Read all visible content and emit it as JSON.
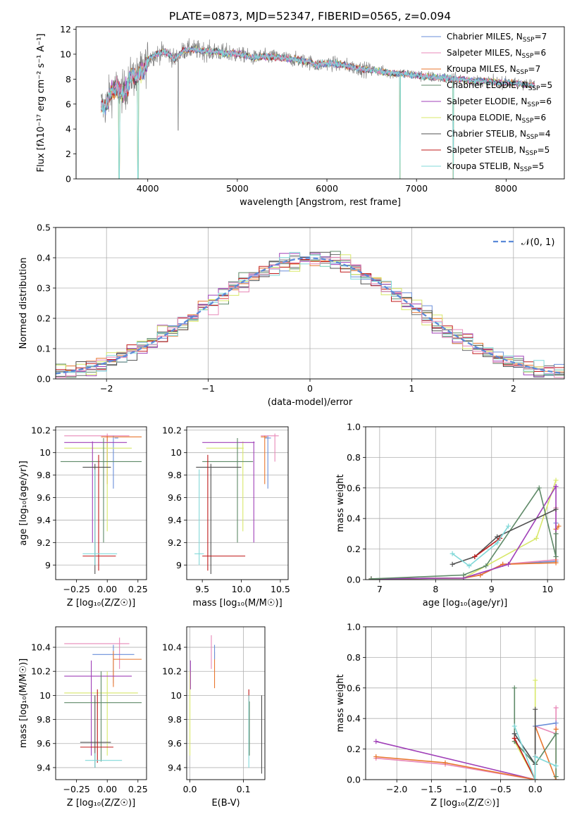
{
  "title": "PLATE=0873, MJD=52347, FIBERID=0565, z=0.094",
  "colors": {
    "cm": "#6a8ed9",
    "sm": "#e8762e",
    "km": "#6f7070",
    "ce": "#5f8a68",
    "se": "#a040b8",
    "ke": "#d8e86a",
    "cs": "#505050",
    "ss": "#c01a1a",
    "ks": "#80d8d8",
    "pink": "#e888b8",
    "spec": "#808080"
  },
  "chart_data": [
    {
      "id": "spectrum",
      "type": "line",
      "xlabel": "wavelength [Angstrom, rest frame]",
      "ylabel": "Flux [fλ10⁻¹⁷ erg cm⁻² s⁻¹ A⁻¹]",
      "xlim": [
        3200,
        8650
      ],
      "ylim": [
        0,
        12.2
      ],
      "xticks": [
        4000,
        5000,
        6000,
        7000,
        8000
      ],
      "yticks": [
        0,
        2,
        4,
        6,
        8,
        10,
        12
      ],
      "legend_position": "upper-right",
      "legend": [
        {
          "key": "cm",
          "label": "Chabrier MILES, N",
          "sub": "SSP",
          "suffix": "=7"
        },
        {
          "key": "pink",
          "label": "Salpeter MILES, N",
          "sub": "SSP",
          "suffix": "=6"
        },
        {
          "key": "sm",
          "label": "Kroupa MILES, N",
          "sub": "SSP",
          "suffix": "=7"
        },
        {
          "key": "ce",
          "label": "Chabrier ELODIE, N",
          "sub": "SSP",
          "suffix": "=5"
        },
        {
          "key": "se",
          "label": "Salpeter ELODIE, N",
          "sub": "SSP",
          "suffix": "=6"
        },
        {
          "key": "ke",
          "label": "Kroupa ELODIE, N",
          "sub": "SSP",
          "suffix": "=6"
        },
        {
          "key": "cs",
          "label": "Chabrier STELIB, N",
          "sub": "SSP",
          "suffix": "=4"
        },
        {
          "key": "ss",
          "label": "Salpeter STELIB, N",
          "sub": "SSP",
          "suffix": "=5"
        },
        {
          "key": "ks",
          "label": "Kroupa STELIB, N",
          "sub": "SSP",
          "suffix": "=5"
        }
      ],
      "continuum": [
        [
          3460,
          6.1
        ],
        [
          3520,
          5.7
        ],
        [
          3580,
          6.8
        ],
        [
          3650,
          7.3
        ],
        [
          3700,
          6.9
        ],
        [
          3760,
          7.2
        ],
        [
          3820,
          8.3
        ],
        [
          3870,
          8.1
        ],
        [
          3920,
          8.6
        ],
        [
          3960,
          8.8
        ],
        [
          4000,
          9.6
        ],
        [
          4100,
          10.0
        ],
        [
          4200,
          10.2
        ],
        [
          4300,
          9.6
        ],
        [
          4400,
          10.3
        ],
        [
          4500,
          10.4
        ],
        [
          4600,
          10.3
        ],
        [
          4700,
          10.2
        ],
        [
          4800,
          10.2
        ],
        [
          4860,
          10.0
        ],
        [
          4900,
          10.1
        ],
        [
          5000,
          10.0
        ],
        [
          5100,
          9.9
        ],
        [
          5175,
          9.7
        ],
        [
          5250,
          9.8
        ],
        [
          5400,
          9.8
        ],
        [
          5600,
          9.6
        ],
        [
          5800,
          9.4
        ],
        [
          5890,
          9.1
        ],
        [
          6000,
          9.3
        ],
        [
          6200,
          9.1
        ],
        [
          6400,
          8.8
        ],
        [
          6560,
          8.7
        ],
        [
          6700,
          8.5
        ],
        [
          6900,
          8.4
        ],
        [
          7100,
          8.2
        ],
        [
          7300,
          8.1
        ],
        [
          7420,
          8.0
        ],
        [
          7600,
          7.9
        ],
        [
          7800,
          7.8
        ],
        [
          8000,
          7.7
        ],
        [
          8200,
          7.6
        ],
        [
          8320,
          7.5
        ]
      ],
      "spec_xrange": [
        3480,
        8320
      ],
      "spec_dips": [
        [
          4340,
          3.9
        ],
        [
          6815,
          0
        ],
        [
          7410,
          0
        ]
      ],
      "model_dips": [
        [
          3680,
          0
        ],
        [
          3890,
          0
        ],
        [
          6815,
          0
        ],
        [
          7410,
          0
        ]
      ]
    },
    {
      "id": "residuals",
      "type": "histogram",
      "xlabel": "(data-model)/error",
      "ylabel": "Normed distribution",
      "xlim": [
        -2.5,
        2.5
      ],
      "ylim": [
        0,
        0.5
      ],
      "xticks": [
        -2,
        -1,
        0,
        1,
        2
      ],
      "xtick_labels": [
        "−2",
        "−1",
        "0",
        "1",
        "2"
      ],
      "yticks": [
        0,
        0.1,
        0.2,
        0.3,
        0.4,
        0.5
      ],
      "ytick_labels": [
        "0.0",
        "0.1",
        "0.2",
        "0.3",
        "0.4",
        "0.5"
      ],
      "legend": "𝒩(0, 1)",
      "legend_position": "upper-right",
      "bin_width": 0.1,
      "reference_curve": "normal(0,1)"
    },
    {
      "id": "age_z",
      "type": "scatter-errorbar",
      "xlabel": "Z [log₁₀(Z/Z☉)]",
      "ylabel": "age  [log₁₀(age/yr)]",
      "xlim": [
        -0.42,
        0.32
      ],
      "ylim": [
        8.87,
        10.23
      ],
      "xticks": [
        -0.25,
        0,
        0.25
      ],
      "xtick_labels": [
        "−0.25",
        "0.00",
        "0.25"
      ],
      "yticks": [
        9.0,
        9.2,
        9.4,
        9.6,
        9.8,
        10.0,
        10.2
      ],
      "points": [
        {
          "k": "pink",
          "x": 0.0,
          "xl": -0.35,
          "xh": 0.18,
          "y": 10.15,
          "yl": 9.92,
          "yh": 10.17
        },
        {
          "k": "cm",
          "x": 0.05,
          "xl": 0.06,
          "xh": 0.09,
          "y": 10.13,
          "yl": 9.68,
          "yh": 10.15
        },
        {
          "k": "sm",
          "x": 0.0,
          "xl": -0.05,
          "xh": 0.28,
          "y": 10.14,
          "yl": 9.72,
          "yh": 10.15
        },
        {
          "k": "ke",
          "x": 0.0,
          "xl": -0.35,
          "xh": 0.2,
          "y": 10.04,
          "yl": 9.3,
          "yh": 10.1
        },
        {
          "k": "se",
          "x": -0.12,
          "xl": -0.35,
          "xh": 0.16,
          "y": 10.09,
          "yl": 9.2,
          "yh": 10.1
        },
        {
          "k": "ce",
          "x": -0.03,
          "xl": -0.38,
          "xh": 0.28,
          "y": 9.92,
          "yl": 9.2,
          "yh": 10.13
        },
        {
          "k": "cs",
          "x": -0.1,
          "xl": -0.2,
          "xh": 0.03,
          "y": 9.87,
          "yl": 8.92,
          "yh": 9.9
        },
        {
          "k": "ss",
          "x": -0.07,
          "xl": -0.2,
          "xh": 0.07,
          "y": 9.08,
          "yl": 8.95,
          "yh": 9.98
        },
        {
          "k": "ks",
          "x": -0.1,
          "xl": -0.2,
          "xh": 0.08,
          "y": 9.1,
          "yl": 9.0,
          "yh": 9.85
        }
      ]
    },
    {
      "id": "age_mass",
      "type": "scatter-errorbar",
      "xlabel": "mass [log₁₀(M/M☉)]",
      "ylabel": "",
      "xlim": [
        9.3,
        10.6
      ],
      "ylim": [
        8.87,
        10.23
      ],
      "xticks": [
        9.5,
        10.0,
        10.5
      ],
      "xtick_labels": [
        "9.5",
        "10.0",
        "10.5"
      ],
      "yticks": [
        9.0,
        9.2,
        9.4,
        9.6,
        9.8,
        10.0,
        10.2
      ],
      "points": [
        {
          "k": "pink",
          "x": 10.43,
          "xl": 10.25,
          "xh": 10.48,
          "y": 10.15,
          "yl": 9.92,
          "yh": 10.17
        },
        {
          "k": "cm",
          "x": 10.34,
          "xl": 10.3,
          "xh": 10.38,
          "y": 10.13,
          "yl": 9.68,
          "yh": 10.15
        },
        {
          "k": "sm",
          "x": 10.3,
          "xl": 10.25,
          "xh": 10.33,
          "y": 10.14,
          "yl": 9.72,
          "yh": 10.15
        },
        {
          "k": "ke",
          "x": 10.02,
          "xl": 9.55,
          "xh": 10.03,
          "y": 10.04,
          "yl": 9.3,
          "yh": 10.1
        },
        {
          "k": "se",
          "x": 10.16,
          "xl": 9.5,
          "xh": 10.17,
          "y": 10.09,
          "yl": 9.2,
          "yh": 10.1
        },
        {
          "k": "ce",
          "x": 9.95,
          "xl": 9.5,
          "xh": 10.15,
          "y": 9.92,
          "yl": 9.2,
          "yh": 10.13
        },
        {
          "k": "cs",
          "x": 9.61,
          "xl": 9.42,
          "xh": 10.0,
          "y": 9.87,
          "yl": 8.92,
          "yh": 9.9
        },
        {
          "k": "ss",
          "x": 9.57,
          "xl": 9.5,
          "xh": 10.05,
          "y": 9.08,
          "yl": 8.95,
          "yh": 9.98
        },
        {
          "k": "ks",
          "x": 9.46,
          "xl": 9.4,
          "xh": 9.52,
          "y": 9.1,
          "yl": 9.0,
          "yh": 9.85
        }
      ]
    },
    {
      "id": "weight_age",
      "type": "line",
      "xlabel": "age  [log₁₀(age/yr)]",
      "ylabel": "mass weight",
      "xlim": [
        6.75,
        10.3
      ],
      "ylim": [
        0,
        1.0
      ],
      "xticks": [
        7,
        8,
        9,
        10
      ],
      "xtick_labels": [
        "7",
        "8",
        "9",
        "10"
      ],
      "yticks": [
        0,
        0.2,
        0.4,
        0.6,
        0.8,
        1.0
      ],
      "ytick_labels": [
        "0.0",
        "0.2",
        "0.4",
        "0.6",
        "0.8",
        "1.0"
      ],
      "series": [
        {
          "k": "cm",
          "x": [
            6.85,
            8.5,
            8.8,
            9.2,
            10.15,
            10.15
          ],
          "y": [
            0.005,
            0.01,
            0.03,
            0.1,
            0.12,
            0.37
          ]
        },
        {
          "k": "pink",
          "x": [
            6.85,
            8.5,
            8.8,
            9.2,
            10.15,
            10.15
          ],
          "y": [
            0.005,
            0.01,
            0.03,
            0.1,
            0.13,
            0.47
          ]
        },
        {
          "k": "sm",
          "x": [
            6.85,
            8.5,
            8.8,
            9.2,
            10.15,
            10.15,
            10.2
          ],
          "y": [
            0.005,
            0.01,
            0.03,
            0.1,
            0.11,
            0.33,
            0.35
          ]
        },
        {
          "k": "ke",
          "x": [
            6.85,
            8.5,
            9.8,
            10.15
          ],
          "y": [
            0.005,
            0.01,
            0.27,
            0.65
          ]
        },
        {
          "k": "se",
          "x": [
            6.85,
            8.5,
            9.3,
            10.15,
            10.15
          ],
          "y": [
            0.005,
            0.01,
            0.1,
            0.61,
            0.15
          ]
        },
        {
          "k": "ce",
          "x": [
            6.85,
            8.5,
            8.9,
            9.85,
            10.15,
            10.15
          ],
          "y": [
            0.005,
            0.03,
            0.09,
            0.6,
            0.15,
            0.3
          ]
        },
        {
          "k": "cs",
          "x": [
            8.3,
            8.7,
            9.1,
            10.15
          ],
          "y": [
            0.1,
            0.15,
            0.28,
            0.46
          ]
        },
        {
          "k": "ss",
          "x": [
            8.7,
            9.15
          ],
          "y": [
            0.15,
            0.27
          ]
        },
        {
          "k": "ks",
          "x": [
            8.3,
            8.6,
            9.1,
            9.3
          ],
          "y": [
            0.17,
            0.09,
            0.24,
            0.35
          ]
        }
      ]
    },
    {
      "id": "mass_z",
      "type": "scatter-errorbar",
      "xlabel": "Z [log₁₀(Z/Z☉)]",
      "ylabel": "mass [log₁₀(M/M☉)]",
      "xlim": [
        -0.42,
        0.32
      ],
      "ylim": [
        9.3,
        10.57
      ],
      "xticks": [
        -0.25,
        0,
        0.25
      ],
      "xtick_labels": [
        "−0.25",
        "0.00",
        "0.25"
      ],
      "yticks": [
        9.4,
        9.6,
        9.8,
        10.0,
        10.2,
        10.4
      ],
      "points": [
        {
          "k": "pink",
          "x": 0.1,
          "xl": -0.35,
          "xh": 0.18,
          "y": 10.43,
          "yl": 10.22,
          "yh": 10.48
        },
        {
          "k": "cm",
          "x": 0.05,
          "xl": -0.12,
          "xh": 0.22,
          "y": 10.34,
          "yl": 10.1,
          "yh": 10.42
        },
        {
          "k": "sm",
          "x": 0.05,
          "xl": 0.05,
          "xh": 0.28,
          "y": 10.3,
          "yl": 10.07,
          "yh": 10.37
        },
        {
          "k": "ke",
          "x": 0.0,
          "xl": -0.35,
          "xh": 0.25,
          "y": 10.02,
          "yl": 9.5,
          "yh": 10.2
        },
        {
          "k": "se",
          "x": -0.13,
          "xl": -0.35,
          "xh": 0.2,
          "y": 10.16,
          "yl": 9.5,
          "yh": 10.29
        },
        {
          "k": "ce",
          "x": -0.05,
          "xl": -0.35,
          "xh": 0.28,
          "y": 9.94,
          "yl": 9.45,
          "yh": 10.2
        },
        {
          "k": "cs",
          "x": -0.1,
          "xl": -0.22,
          "xh": 0.03,
          "y": 9.61,
          "yl": 9.4,
          "yh": 10.0
        },
        {
          "k": "ss",
          "x": -0.08,
          "xl": -0.22,
          "xh": 0.05,
          "y": 9.57,
          "yl": 9.44,
          "yh": 10.05
        },
        {
          "k": "ks",
          "x": -0.1,
          "xl": -0.18,
          "xh": 0.12,
          "y": 9.46,
          "yl": 9.4,
          "yh": 9.52
        }
      ]
    },
    {
      "id": "mass_ebv",
      "type": "errorbar",
      "xlabel": "E(B-V)",
      "ylabel": "",
      "xlim": [
        -0.006,
        0.14
      ],
      "ylim": [
        9.3,
        10.57
      ],
      "xticks": [
        0.0,
        0.1
      ],
      "xtick_labels": [
        "0.0",
        "0.1"
      ],
      "yticks": [
        9.4,
        9.6,
        9.8,
        10.0,
        10.2,
        10.4
      ],
      "points": [
        {
          "k": "ke",
          "x": 0.0,
          "yl": 9.5,
          "yh": 10.2
        },
        {
          "k": "se",
          "x": 0.001,
          "yl": 10.05,
          "yh": 10.29
        },
        {
          "k": "pink",
          "x": 0.04,
          "yl": 10.22,
          "yh": 10.5
        },
        {
          "k": "sm",
          "x": 0.046,
          "yl": 10.06,
          "yh": 10.36
        },
        {
          "k": "cm",
          "x": 0.046,
          "yl": 10.3,
          "yh": 10.42
        },
        {
          "k": "ss",
          "x": 0.11,
          "yl": 9.95,
          "yh": 10.05
        },
        {
          "k": "ks",
          "x": 0.11,
          "yl": 9.4,
          "yh": 10.0
        },
        {
          "k": "ce",
          "x": 0.111,
          "yl": 9.5,
          "yh": 9.95
        },
        {
          "k": "cs",
          "x": 0.134,
          "yl": 9.35,
          "yh": 10.0
        }
      ]
    },
    {
      "id": "weight_z",
      "type": "line",
      "xlabel": "Z [log₁₀(Z/Z☉)]",
      "ylabel": "mass weight",
      "xlim": [
        -2.45,
        0.42
      ],
      "ylim": [
        0,
        1.0
      ],
      "xticks": [
        -2.0,
        -1.5,
        -1.0,
        -0.5,
        0.0
      ],
      "xtick_labels": [
        "−2.0",
        "−1.5",
        "−1.0",
        "−0.5",
        "0.0"
      ],
      "yticks": [
        0,
        0.2,
        0.4,
        0.6,
        0.8,
        1.0
      ],
      "ytick_labels": [
        "0.0",
        "0.2",
        "0.4",
        "0.6",
        "0.8",
        "1.0"
      ],
      "series": [
        {
          "k": "se",
          "x": [
            -2.3,
            0.0,
            0.0
          ],
          "y": [
            0.25,
            0.0,
            0.1
          ]
        },
        {
          "k": "pink",
          "x": [
            -2.3,
            -1.3,
            0.0,
            0.0,
            0.3,
            0.3
          ],
          "y": [
            0.14,
            0.1,
            0.0,
            0.35,
            0.3,
            0.47
          ]
        },
        {
          "k": "sm",
          "x": [
            -2.3,
            -1.3,
            0.0,
            0.0,
            0.3,
            0.3
          ],
          "y": [
            0.15,
            0.11,
            0.0,
            0.35,
            0.0,
            0.33
          ]
        },
        {
          "k": "cm",
          "x": [
            -0.3,
            0.0,
            0.0,
            0.3
          ],
          "y": [
            0.3,
            0.1,
            0.35,
            0.37
          ]
        },
        {
          "k": "ke",
          "x": [
            -0.3,
            0.0,
            0.0,
            0.0
          ],
          "y": [
            0.25,
            0.0,
            0.65,
            0.1
          ]
        },
        {
          "k": "ce",
          "x": [
            -0.3,
            -0.3,
            0.0,
            0.3,
            0.3
          ],
          "y": [
            0.6,
            0.25,
            0.1,
            0.3,
            0.02
          ]
        },
        {
          "k": "cs",
          "x": [
            -0.3,
            0.0,
            0.0
          ],
          "y": [
            0.3,
            0.1,
            0.46
          ]
        },
        {
          "k": "ss",
          "x": [
            -0.3,
            0.0,
            0.0
          ],
          "y": [
            0.27,
            0.0,
            0.15
          ]
        },
        {
          "k": "ks",
          "x": [
            -0.3,
            0.0,
            0.0,
            0.3
          ],
          "y": [
            0.35,
            0.0,
            0.15,
            0.09
          ]
        }
      ]
    }
  ]
}
